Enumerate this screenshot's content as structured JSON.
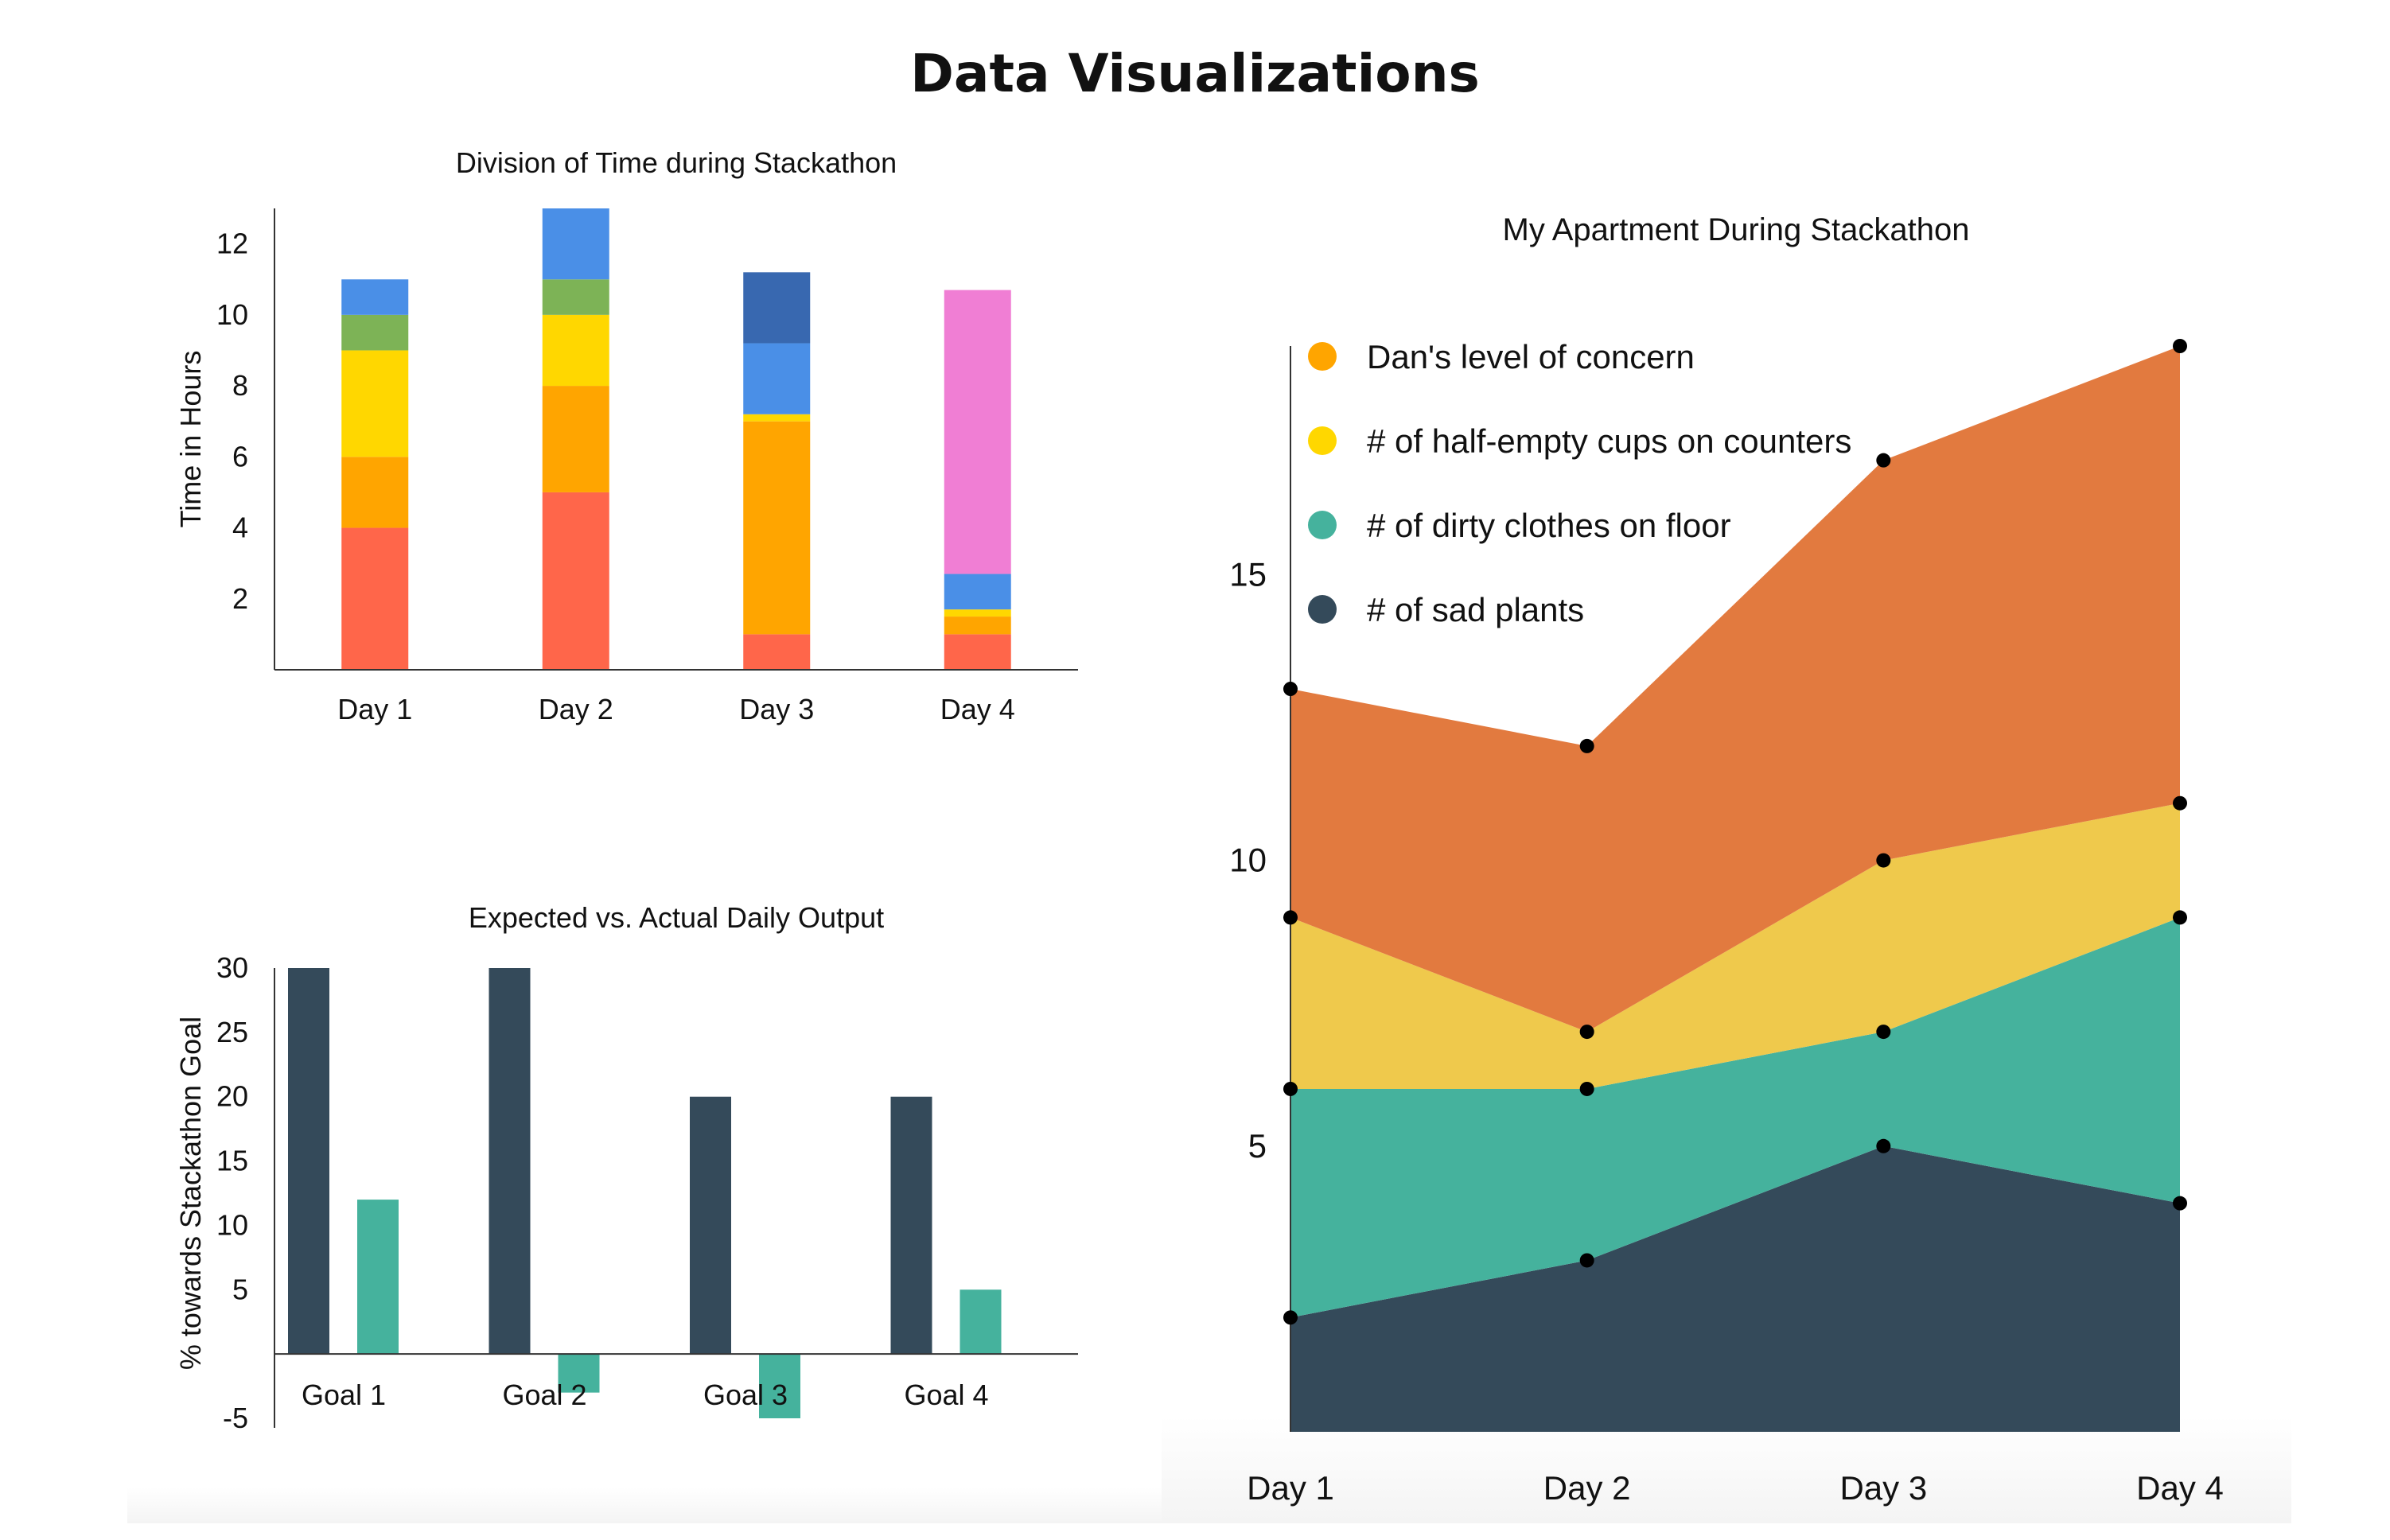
{
  "page": {
    "title": "Data Visualizations"
  },
  "chart_data": [
    {
      "id": "time-division",
      "type": "bar",
      "stacked": true,
      "title": "Division of Time during Stackathon",
      "xlabel": "",
      "ylabel": "Time in Hours",
      "categories": [
        "Day 1",
        "Day 2",
        "Day 3",
        "Day 4"
      ],
      "ylim": [
        0,
        13
      ],
      "yticks": [
        2,
        4,
        6,
        8,
        10,
        12
      ],
      "grid": false,
      "legend": "none",
      "series": [
        {
          "color": "#FF664A",
          "values": [
            4,
            5,
            1,
            1
          ]
        },
        {
          "color": "#FFA500",
          "values": [
            2,
            3,
            6,
            0.5
          ]
        },
        {
          "color": "#FFD700",
          "values": [
            3,
            2,
            0.2,
            0.2
          ]
        },
        {
          "color": "#7DB356",
          "values": [
            1,
            1,
            0,
            0
          ]
        },
        {
          "color": "#4A8FE7",
          "values": [
            1,
            2,
            2,
            1
          ]
        },
        {
          "color": "#3868B0",
          "values": [
            0,
            0,
            2,
            0
          ]
        },
        {
          "color": "#F07ED4",
          "values": [
            0,
            0,
            0,
            8
          ]
        }
      ]
    },
    {
      "id": "daily-output",
      "type": "bar",
      "title": "Expected vs. Actual Daily Output",
      "xlabel": "",
      "ylabel": "% towards Stackathon Goal",
      "categories": [
        "Goal 1",
        "Goal 2",
        "Goal 3",
        "Goal 4"
      ],
      "ylim": [
        -5,
        30
      ],
      "yticks": [
        -5,
        5,
        10,
        15,
        20,
        25,
        30
      ],
      "grid": false,
      "legend": "none",
      "series": [
        {
          "color": "#344A5A",
          "values": [
            30,
            30,
            20,
            20
          ]
        },
        {
          "color": "#45B29D",
          "values": [
            12,
            -3,
            -5,
            5
          ]
        }
      ]
    },
    {
      "id": "apartment",
      "type": "area",
      "stacked": true,
      "title": "My Apartment During Stackathon",
      "xlabel": "",
      "ylabel": "",
      "categories": [
        "Day 1",
        "Day 2",
        "Day 3",
        "Day 4"
      ],
      "ylim": [
        0,
        19
      ],
      "yticks": [
        5,
        10,
        15
      ],
      "grid": false,
      "legend": "top-left",
      "series": [
        {
          "name": "# of sad plants",
          "color": "#344A5A",
          "marker_color": "#344A5A",
          "values": [
            2,
            3,
            5,
            4
          ]
        },
        {
          "name": "# of dirty clothes on floor",
          "color": "#45B29D",
          "marker_color": "#45B29D",
          "values": [
            4,
            3,
            2,
            5
          ]
        },
        {
          "name": "# of half-empty cups on counters",
          "color": "#EFC94C",
          "marker_color": "#FFD700",
          "values": [
            3,
            1,
            3,
            2
          ]
        },
        {
          "name": "Dan's level of concern",
          "color": "#E27A3F",
          "marker_color": "#FFA500",
          "values": [
            4,
            5,
            7,
            8
          ]
        }
      ]
    }
  ]
}
